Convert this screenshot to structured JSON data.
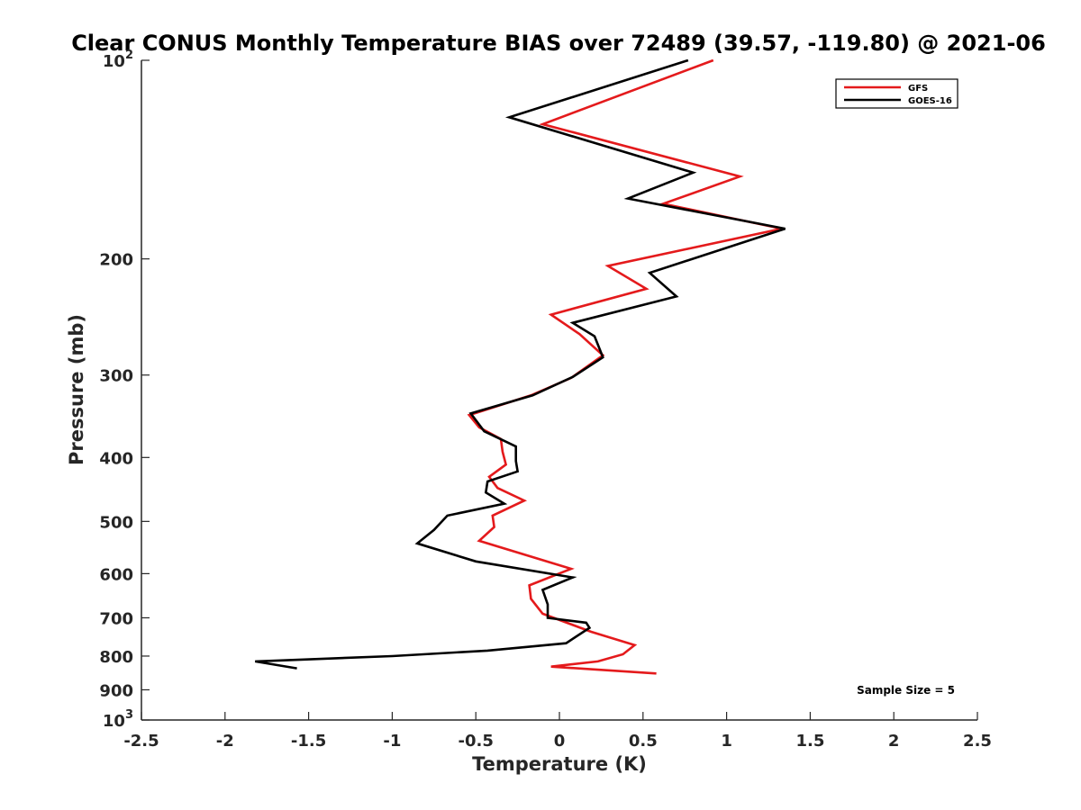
{
  "chart_data": {
    "type": "line",
    "title": "Clear CONUS Monthly Temperature BIAS over 72489 (39.57, -119.80) @ 2021-06",
    "xlabel": "Temperature (K)",
    "ylabel": "Pressure (mb)",
    "xlim": [
      -2.5,
      2.5
    ],
    "ylim": [
      100,
      1000
    ],
    "yscale": "log",
    "yreversed": true,
    "x_ticks": [
      "-2.5",
      "-2",
      "-1.5",
      "-1",
      "-0.5",
      "0",
      "0.5",
      "1",
      "1.5",
      "2",
      "2.5"
    ],
    "y_ticks": [
      {
        "value": 100,
        "base": "10",
        "exp": "2"
      },
      {
        "value": 200,
        "label": "200"
      },
      {
        "value": 300,
        "label": "300"
      },
      {
        "value": 400,
        "label": "400"
      },
      {
        "value": 500,
        "label": "500"
      },
      {
        "value": 600,
        "label": "600"
      },
      {
        "value": 700,
        "label": "700"
      },
      {
        "value": 800,
        "label": "800"
      },
      {
        "value": 900,
        "label": "900"
      },
      {
        "value": 1000,
        "base": "10",
        "exp": "3"
      }
    ],
    "grid": false,
    "legend_position": "top-right",
    "annotation": "Sample Size = 5",
    "series": [
      {
        "name": "GFS",
        "color": "#e41a1c",
        "points": [
          [
            0.92,
            100
          ],
          [
            -0.1,
            125
          ],
          [
            1.08,
            150
          ],
          [
            0.62,
            165
          ],
          [
            1.33,
            180
          ],
          [
            0.29,
            205
          ],
          [
            0.52,
            222
          ],
          [
            -0.05,
            243
          ],
          [
            0.12,
            260
          ],
          [
            0.26,
            280
          ],
          [
            0.07,
            303
          ],
          [
            -0.17,
            322
          ],
          [
            -0.54,
            345
          ],
          [
            -0.48,
            360
          ],
          [
            -0.35,
            375
          ],
          [
            -0.34,
            392
          ],
          [
            -0.32,
            410
          ],
          [
            -0.42,
            428
          ],
          [
            -0.37,
            445
          ],
          [
            -0.21,
            465
          ],
          [
            -0.4,
            490
          ],
          [
            -0.39,
            510
          ],
          [
            -0.48,
            535
          ],
          [
            0.07,
            590
          ],
          [
            -0.18,
            625
          ],
          [
            -0.17,
            655
          ],
          [
            -0.1,
            690
          ],
          [
            0.19,
            735
          ],
          [
            0.45,
            770
          ],
          [
            0.38,
            795
          ],
          [
            0.23,
            815
          ],
          [
            -0.05,
            830
          ],
          [
            0.58,
            850
          ]
        ]
      },
      {
        "name": "GOES-16",
        "color": "#000000",
        "points": [
          [
            0.77,
            100
          ],
          [
            -0.3,
            122
          ],
          [
            0.8,
            148
          ],
          [
            0.41,
            162
          ],
          [
            1.35,
            180
          ],
          [
            0.54,
            210
          ],
          [
            0.7,
            228
          ],
          [
            0.08,
            250
          ],
          [
            0.21,
            262
          ],
          [
            0.26,
            282
          ],
          [
            0.08,
            302
          ],
          [
            -0.16,
            322
          ],
          [
            -0.53,
            343
          ],
          [
            -0.45,
            365
          ],
          [
            -0.26,
            385
          ],
          [
            -0.26,
            405
          ],
          [
            -0.25,
            420
          ],
          [
            -0.43,
            435
          ],
          [
            -0.44,
            452
          ],
          [
            -0.33,
            470
          ],
          [
            -0.67,
            490
          ],
          [
            -0.75,
            515
          ],
          [
            -0.85,
            540
          ],
          [
            -0.5,
            575
          ],
          [
            0.08,
            608
          ],
          [
            -0.1,
            635
          ],
          [
            -0.07,
            668
          ],
          [
            -0.07,
            700
          ],
          [
            0.16,
            712
          ],
          [
            0.18,
            725
          ],
          [
            0.04,
            765
          ],
          [
            -0.43,
            785
          ],
          [
            -1.0,
            800
          ],
          [
            -1.82,
            815
          ],
          [
            -1.57,
            835
          ]
        ]
      }
    ]
  }
}
